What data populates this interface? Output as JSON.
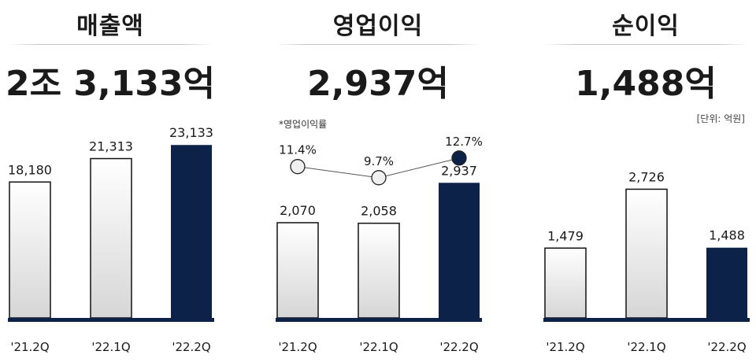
{
  "chart_data": [
    {
      "type": "bar",
      "title": "매출액",
      "total": "2조 3,133억",
      "categories": [
        "'21.2Q",
        "'22.1Q",
        "'22.2Q"
      ],
      "values": [
        18180,
        21313,
        23133
      ],
      "labels": [
        "18,180",
        "21,313",
        "23,133"
      ],
      "highlight_index": 2,
      "ylim": [
        0,
        24000
      ]
    },
    {
      "type": "bar",
      "title": "영업이익",
      "total": "2,937억",
      "categories": [
        "'21.2Q",
        "'22.1Q",
        "'22.2Q"
      ],
      "values": [
        2070,
        2058,
        2937
      ],
      "labels": [
        "2,070",
        "2,058",
        "2,937"
      ],
      "highlight_index": 2,
      "ylim": [
        0,
        3900
      ],
      "line_series": {
        "name": "*영업이익률",
        "values": [
          11.4,
          9.7,
          12.7
        ],
        "labels": [
          "11.4%",
          "9.7%",
          "12.7%"
        ]
      }
    },
    {
      "type": "bar",
      "title": "순이익",
      "total": "1,488억",
      "categories": [
        "'21.2Q",
        "'22.1Q",
        "'22.2Q"
      ],
      "values": [
        1479,
        2726,
        1488
      ],
      "labels": [
        "1,479",
        "2,726",
        "1,488"
      ],
      "highlight_index": 2,
      "ylim": [
        0,
        3800
      ]
    }
  ],
  "unit_label": "[단위: 억원]",
  "colors": {
    "highlight": "#0d2248",
    "bar_light_top": "#ffffff",
    "bar_light_bottom": "#d6d6d6",
    "baseline": "#0d2248",
    "text": "#1a1a1a"
  }
}
